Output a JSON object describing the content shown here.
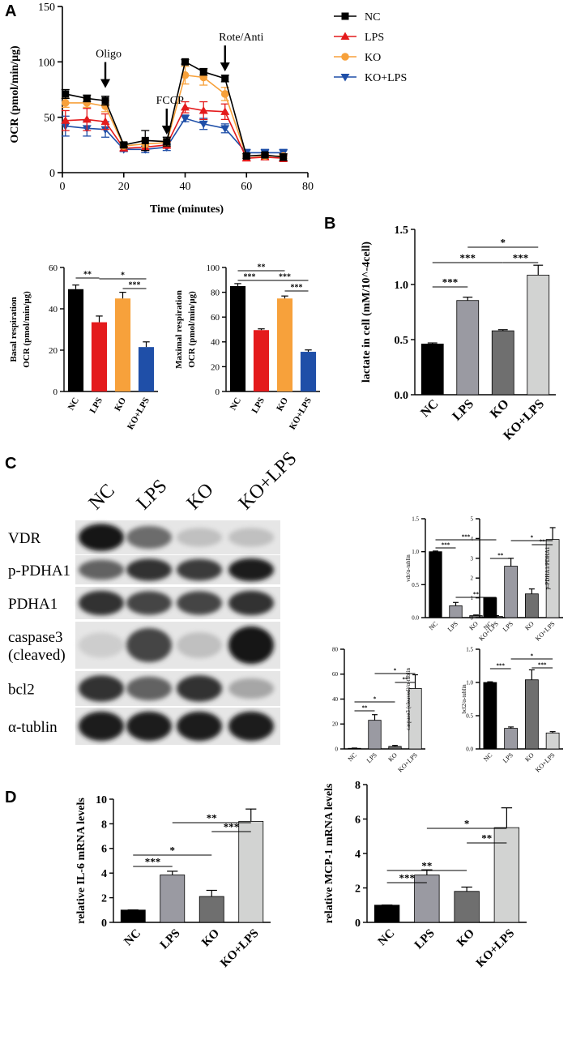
{
  "panels": {
    "A": {
      "letter": "A"
    },
    "B": {
      "letter": "B"
    },
    "C": {
      "letter": "C"
    },
    "D": {
      "letter": "D"
    }
  },
  "colors": {
    "NC": "#000000",
    "LPS": "#e41a1c",
    "KO": "#f7a13b",
    "KO+LPS": "#1f4fa8",
    "gray_NC": "#000000",
    "gray_LPS": "#9a9aa2",
    "gray_KO": "#6f6f6f",
    "gray_KOLPS": "#d2d3d2"
  },
  "chart_data": [
    {
      "id": "ocr_timecourse",
      "type": "line",
      "xlabel": "Time (minutes)",
      "ylabel": "OCR (pmol/min/μg)",
      "xlim": [
        0,
        80
      ],
      "ylim": [
        0,
        150
      ],
      "xticks": [
        0,
        20,
        40,
        60,
        80
      ],
      "yticks": [
        0,
        50,
        100,
        150
      ],
      "legend_position": "top-right",
      "annotations": [
        {
          "label": "Oligo",
          "x": 14,
          "y": 72
        },
        {
          "label": "FCCP",
          "x": 34,
          "y": 30
        },
        {
          "label": "Rote/Anti",
          "x": 53,
          "y": 87
        }
      ],
      "x": [
        1,
        8,
        14,
        20,
        27,
        34,
        40,
        46,
        53,
        60,
        66,
        72
      ],
      "series": [
        {
          "name": "NC",
          "marker": "square",
          "values": [
            71,
            67,
            65,
            25,
            29,
            28,
            100,
            91,
            85,
            15,
            16,
            14
          ],
          "errors": [
            4,
            3,
            4,
            2,
            9,
            4,
            2,
            3,
            3,
            2,
            2,
            3
          ]
        },
        {
          "name": "LPS",
          "marker": "triangle-up",
          "values": [
            47,
            48,
            46,
            22,
            23,
            25,
            59,
            56,
            55,
            13,
            14,
            13
          ],
          "errors": [
            9,
            10,
            7,
            2,
            3,
            3,
            5,
            8,
            7,
            2,
            2,
            3
          ]
        },
        {
          "name": "KO",
          "marker": "circle",
          "values": [
            63,
            63,
            60,
            24,
            26,
            27,
            88,
            86,
            71,
            15,
            15,
            15
          ],
          "errors": [
            4,
            4,
            5,
            2,
            3,
            3,
            8,
            7,
            6,
            2,
            2,
            2
          ]
        },
        {
          "name": "KO+LPS",
          "marker": "triangle-down",
          "values": [
            42,
            40,
            39,
            21,
            21,
            23,
            49,
            44,
            40,
            18,
            18,
            18
          ],
          "errors": [
            9,
            7,
            7,
            2,
            3,
            3,
            3,
            5,
            4,
            3,
            3,
            3
          ]
        }
      ]
    },
    {
      "id": "basal",
      "type": "bar",
      "ylabel_line1": "Basal respiration",
      "ylabel_line2": "OCR (pmol/min/μg)",
      "categories": [
        "NC",
        "LPS",
        "KO",
        "KO+LPS"
      ],
      "values": [
        49.5,
        33.5,
        45,
        21.5
      ],
      "errors": [
        2,
        3,
        3,
        2.5
      ],
      "ylim": [
        0,
        60
      ],
      "yticks": [
        0,
        20,
        40,
        60
      ],
      "significance": [
        {
          "from": 0,
          "to": 1,
          "label": "**"
        },
        {
          "from": 1,
          "to": 3,
          "label": "*"
        },
        {
          "from": 2,
          "to": 3,
          "label": "***"
        }
      ]
    },
    {
      "id": "maximal",
      "type": "bar",
      "ylabel_line1": "Maximal respiration",
      "ylabel_line2": "OCR (pmol/min/μg)",
      "categories": [
        "NC",
        "LPS",
        "KO",
        "KO+LPS"
      ],
      "values": [
        85,
        49.5,
        75,
        32
      ],
      "errors": [
        2,
        1,
        2,
        1.5
      ],
      "ylim": [
        0,
        100
      ],
      "yticks": [
        0,
        20,
        40,
        60,
        80,
        100
      ],
      "significance": [
        {
          "from": 0,
          "to": 2,
          "label": "**"
        },
        {
          "from": 0,
          "to": 1,
          "label": "***"
        },
        {
          "from": 1,
          "to": 3,
          "label": "***"
        },
        {
          "from": 2,
          "to": 3,
          "label": "***"
        }
      ]
    },
    {
      "id": "lactate",
      "type": "bar",
      "ylabel": "lactate in cell (mM/10^-4cell)",
      "categories": [
        "NC",
        "LPS",
        "KO",
        "KO+LPS"
      ],
      "values": [
        0.46,
        0.855,
        0.58,
        1.085
      ],
      "errors": [
        0.01,
        0.03,
        0.01,
        0.09
      ],
      "ylim": [
        0,
        1.5
      ],
      "yticks": [
        "0.0",
        "0.5",
        "1.0",
        "1.5"
      ],
      "significance": [
        {
          "from": 1,
          "to": 3,
          "label": "*"
        },
        {
          "from": 0,
          "to": 2,
          "label": "***"
        },
        {
          "from": 2,
          "to": 3,
          "label": "***"
        },
        {
          "from": 0,
          "to": 1,
          "label": "***"
        }
      ]
    },
    {
      "id": "vdr_ratio",
      "type": "bar",
      "ylabel": "vdr/α-tublin",
      "categories": [
        "NC",
        "LPS",
        "KO",
        "KO+LPS"
      ],
      "values": [
        1.0,
        0.18,
        0.03,
        0.02
      ],
      "errors": [
        0.01,
        0.05,
        0.01,
        0.01
      ],
      "ylim": [
        0,
        1.5
      ],
      "yticks": [
        "0.0",
        "0.5",
        "1.0",
        "1.5"
      ],
      "significance": [
        {
          "from": 0,
          "to": 3,
          "label": "***"
        },
        {
          "from": 0,
          "to": 1,
          "label": "***"
        },
        {
          "from": 1,
          "to": 3,
          "label": "**"
        }
      ]
    },
    {
      "id": "pdha1_ratio",
      "type": "bar",
      "ylabel": "p-PDHA1/PDHA1",
      "categories": [
        "NC",
        "LPS",
        "KO",
        "KO+LPS"
      ],
      "values": [
        1.0,
        2.6,
        1.2,
        3.95
      ],
      "errors": [
        0.02,
        0.4,
        0.25,
        0.6
      ],
      "ylim": [
        0,
        5
      ],
      "yticks": [
        0,
        1,
        2,
        3,
        4,
        5
      ],
      "significance": [
        {
          "from": 1,
          "to": 3,
          "label": "*"
        },
        {
          "from": 2,
          "to": 3,
          "label": "**"
        },
        {
          "from": 0,
          "to": 1,
          "label": "**"
        }
      ]
    },
    {
      "id": "caspase3_ratio",
      "type": "bar",
      "ylabel": "caspase3 (cleaved)/α-tublin",
      "categories": [
        "NC",
        "LPS",
        "KO",
        "KO+LPS"
      ],
      "values": [
        0.5,
        23,
        2,
        48.5
      ],
      "errors": [
        0.2,
        4.5,
        0.8,
        11
      ],
      "ylim": [
        0,
        80
      ],
      "yticks": [
        0,
        20,
        40,
        60,
        80
      ],
      "significance": [
        {
          "from": 1,
          "to": 3,
          "label": "*"
        },
        {
          "from": 2,
          "to": 3,
          "label": "**"
        },
        {
          "from": 0,
          "to": 2,
          "label": "*"
        },
        {
          "from": 0,
          "to": 1,
          "label": "**"
        }
      ]
    },
    {
      "id": "bcl2_ratio",
      "type": "bar",
      "ylabel": "bcl2/α-tublin",
      "categories": [
        "NC",
        "LPS",
        "KO",
        "KO+LPS"
      ],
      "values": [
        1.0,
        0.31,
        1.04,
        0.24
      ],
      "errors": [
        0.01,
        0.02,
        0.15,
        0.02
      ],
      "ylim": [
        0,
        1.5
      ],
      "yticks": [
        "0.0",
        "0.5",
        "1.0",
        "1.5"
      ],
      "significance": [
        {
          "from": 1,
          "to": 3,
          "label": "*"
        },
        {
          "from": 2,
          "to": 3,
          "label": "***"
        },
        {
          "from": 0,
          "to": 1,
          "label": "***"
        }
      ]
    },
    {
      "id": "il6",
      "type": "bar",
      "ylabel": "relative IL-6 mRNA levels",
      "categories": [
        "NC",
        "LPS",
        "KO",
        "KO+LPS"
      ],
      "values": [
        1.0,
        3.85,
        2.1,
        8.2
      ],
      "errors": [
        0.01,
        0.3,
        0.5,
        1.0
      ],
      "ylim": [
        0,
        10
      ],
      "yticks": [
        0,
        2,
        4,
        6,
        8,
        10
      ],
      "significance": [
        {
          "from": 1,
          "to": 3,
          "label": "**"
        },
        {
          "from": 2,
          "to": 3,
          "label": "***"
        },
        {
          "from": 0,
          "to": 2,
          "label": "*"
        },
        {
          "from": 0,
          "to": 1,
          "label": "***"
        }
      ]
    },
    {
      "id": "mcp1",
      "type": "bar",
      "ylabel": "relative MCP-1 mRNA levels",
      "categories": [
        "NC",
        "LPS",
        "KO",
        "KO+LPS"
      ],
      "values": [
        1.0,
        2.75,
        1.8,
        5.5
      ],
      "errors": [
        0.01,
        0.3,
        0.25,
        1.15
      ],
      "ylim": [
        0,
        8
      ],
      "yticks": [
        0,
        2,
        4,
        6,
        8
      ],
      "significance": [
        {
          "from": 1,
          "to": 3,
          "label": "*"
        },
        {
          "from": 2,
          "to": 3,
          "label": "**"
        },
        {
          "from": 0,
          "to": 2,
          "label": "**"
        },
        {
          "from": 0,
          "to": 1,
          "label": "***"
        }
      ]
    }
  ],
  "blot": {
    "lanes": [
      "NC",
      "LPS",
      "KO",
      "KO+LPS"
    ],
    "rows": [
      {
        "label": "VDR",
        "intensity": [
          1.0,
          0.55,
          0.12,
          0.12
        ]
      },
      {
        "label": "p-PDHA1",
        "intensity": [
          0.6,
          0.85,
          0.8,
          0.95
        ]
      },
      {
        "label": "PDHA1",
        "intensity": [
          0.85,
          0.75,
          0.75,
          0.85
        ]
      },
      {
        "label": "caspase3\n(cleaved)",
        "intensity": [
          0.05,
          0.75,
          0.12,
          1.0
        ]
      },
      {
        "label": "bcl2",
        "intensity": [
          0.85,
          0.6,
          0.85,
          0.25
        ]
      },
      {
        "label": "α-tublin",
        "intensity": [
          0.95,
          0.95,
          0.95,
          0.95
        ]
      }
    ]
  }
}
